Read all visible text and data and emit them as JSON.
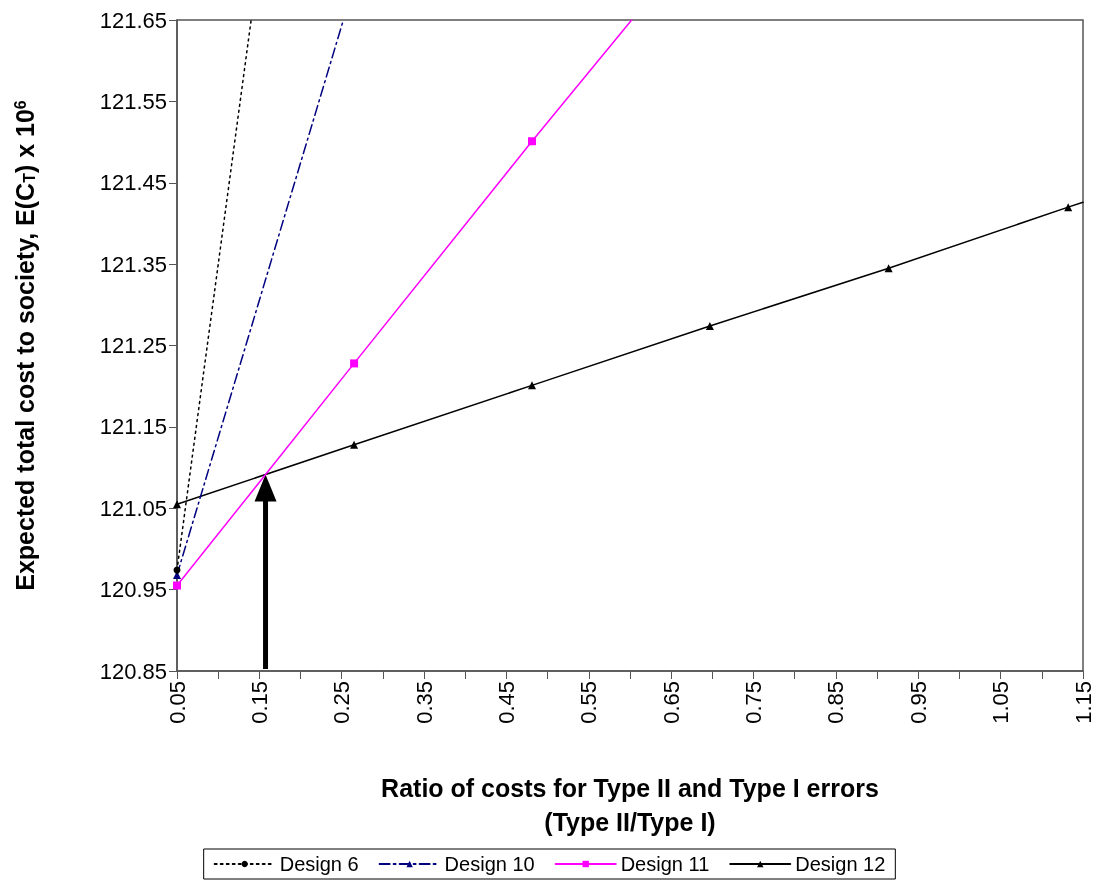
{
  "chart_data": {
    "type": "line",
    "xlabel": "Ratio of costs for Type II and Type I errors\n(Type II/Type I)",
    "ylabel": "Expected total cost to society, E(C$_{T}$) x 10$^{6}$",
    "xlim": [
      0.05,
      1.15
    ],
    "xticks": [
      0.05,
      {
        "value": 0.1,
        "label": null
      },
      0.15,
      {
        "value": 0.2,
        "label": null
      },
      0.25,
      {
        "value": 0.3,
        "label": null
      },
      0.35,
      {
        "value": 0.4,
        "label": null
      },
      0.45,
      {
        "value": 0.5,
        "label": null
      },
      0.55,
      {
        "value": 0.6,
        "label": null
      },
      0.65,
      {
        "value": 0.7,
        "label": null
      },
      0.75,
      {
        "value": 0.8,
        "label": null
      },
      0.85,
      {
        "value": 0.9,
        "label": null
      },
      0.95,
      {
        "value": 1.0,
        "label": null
      },
      1.05,
      {
        "value": 1.1,
        "label": null
      },
      1.15
    ],
    "ylim": [
      120.85,
      121.65
    ],
    "yticks": [
      120.85,
      120.95,
      121.05,
      121.15,
      121.25,
      121.35,
      121.45,
      121.55,
      121.65
    ],
    "grid": false,
    "legend": "bottom",
    "series": [
      {
        "name": "Design 6",
        "color": "#000000",
        "marker": "circle",
        "line_style": "dotted",
        "x": [
          0.05,
          0.14
        ],
        "values": [
          120.974,
          121.65
        ]
      },
      {
        "name": "Design 10",
        "color": "#000080",
        "marker": "triangle",
        "line_style": "dashed",
        "x": [
          0.05,
          0.252
        ],
        "values": [
          120.968,
          121.65
        ]
      },
      {
        "name": "Design 11",
        "color": "#ff00ff",
        "marker": "square",
        "line_style": "solid",
        "x": [
          0.05,
          0.265,
          0.481,
          0.602
        ],
        "values": [
          120.955,
          121.228,
          121.501,
          121.65
        ]
      },
      {
        "name": "Design 12",
        "color": "#000000",
        "marker": "triangle",
        "line_style": "solid",
        "x": [
          0.05,
          0.265,
          0.481,
          0.697,
          0.914,
          1.132,
          1.15
        ],
        "values": [
          121.055,
          121.128,
          121.201,
          121.274,
          121.345,
          121.42,
          121.426
        ]
      }
    ]
  }
}
